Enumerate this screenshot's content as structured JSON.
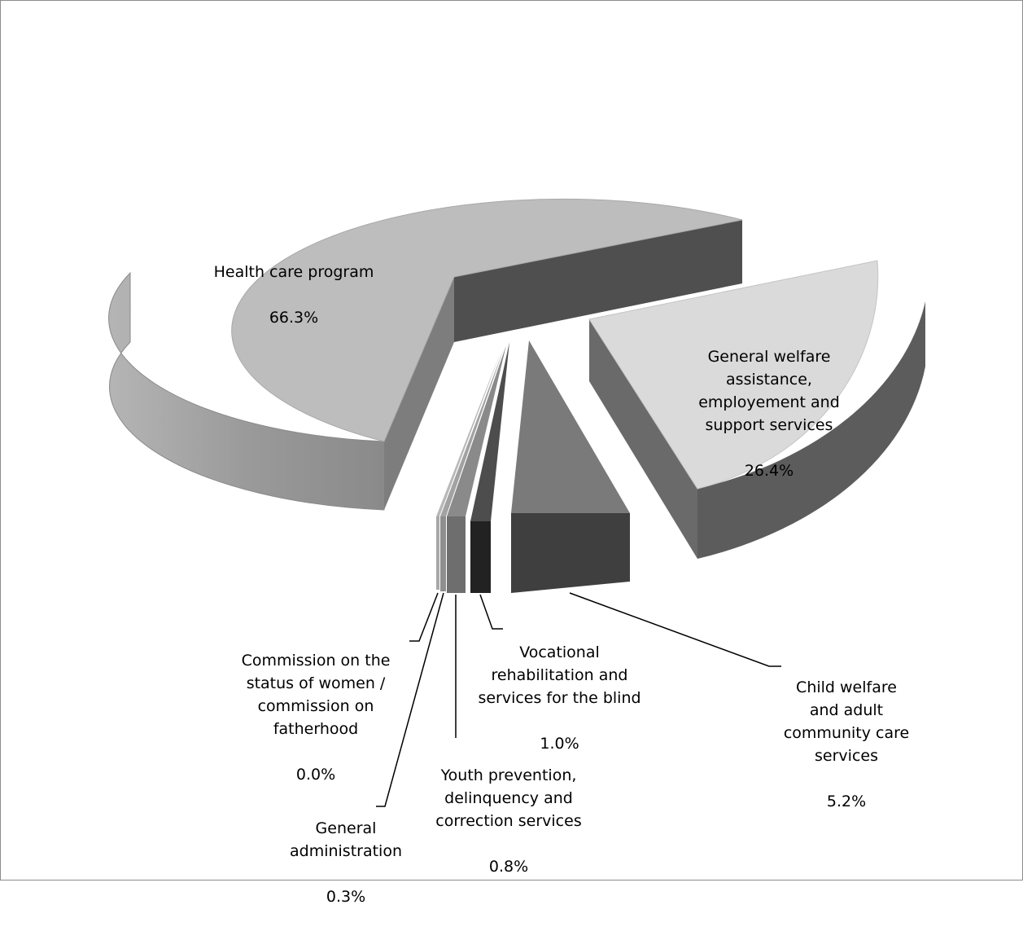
{
  "chart_data": {
    "type": "pie",
    "style": "3d-exploded",
    "title": "",
    "slices": [
      {
        "name": "Health care program",
        "value": 66.3,
        "value_label": "66.3%",
        "color": "#bdbdbd"
      },
      {
        "name": "General welfare assistance, employement and support services",
        "value": 26.4,
        "value_label": "26.4%",
        "color": "#dadada"
      },
      {
        "name": "Child welfare and adult community care services",
        "value": 5.2,
        "value_label": "5.2%",
        "color": "#7a7a7a"
      },
      {
        "name": "Vocational rehabilitation and services for the blind",
        "value": 1.0,
        "value_label": "1.0%",
        "color": "#5a5a5a"
      },
      {
        "name": "Youth prevention, delinquency and correction services",
        "value": 0.8,
        "value_label": "0.8%",
        "color": "#7f7f7f"
      },
      {
        "name": "General administration",
        "value": 0.3,
        "value_label": "0.3%",
        "color": "#9a9a9a"
      },
      {
        "name": "Commission on the status of women / commission on fatherhood",
        "value": 0.0,
        "value_label": "0.0%",
        "color": "#aaaaaa"
      }
    ]
  },
  "labels": {
    "health": {
      "line1": "Health care program",
      "line2": "66.3%"
    },
    "welfare": {
      "line1": "General welfare\nassistance,\nemployement and\nsupport services",
      "line2": "26.4%"
    },
    "child": {
      "line1": "Child welfare\nand adult\ncommunity care\nservices",
      "line2": "5.2%"
    },
    "vocational": {
      "line1": "Vocational\nrehabilitation and\nservices for the blind",
      "line2": "1.0%"
    },
    "youth": {
      "line1": "Youth prevention,\ndelinquency and\ncorrection services",
      "line2": "0.8%"
    },
    "admin": {
      "line1": "General\nadministration",
      "line2": "0.3%"
    },
    "commission": {
      "line1": "Commission on the\nstatus of women /\ncommission on\nfatherhood",
      "line2": "0.0%"
    }
  }
}
